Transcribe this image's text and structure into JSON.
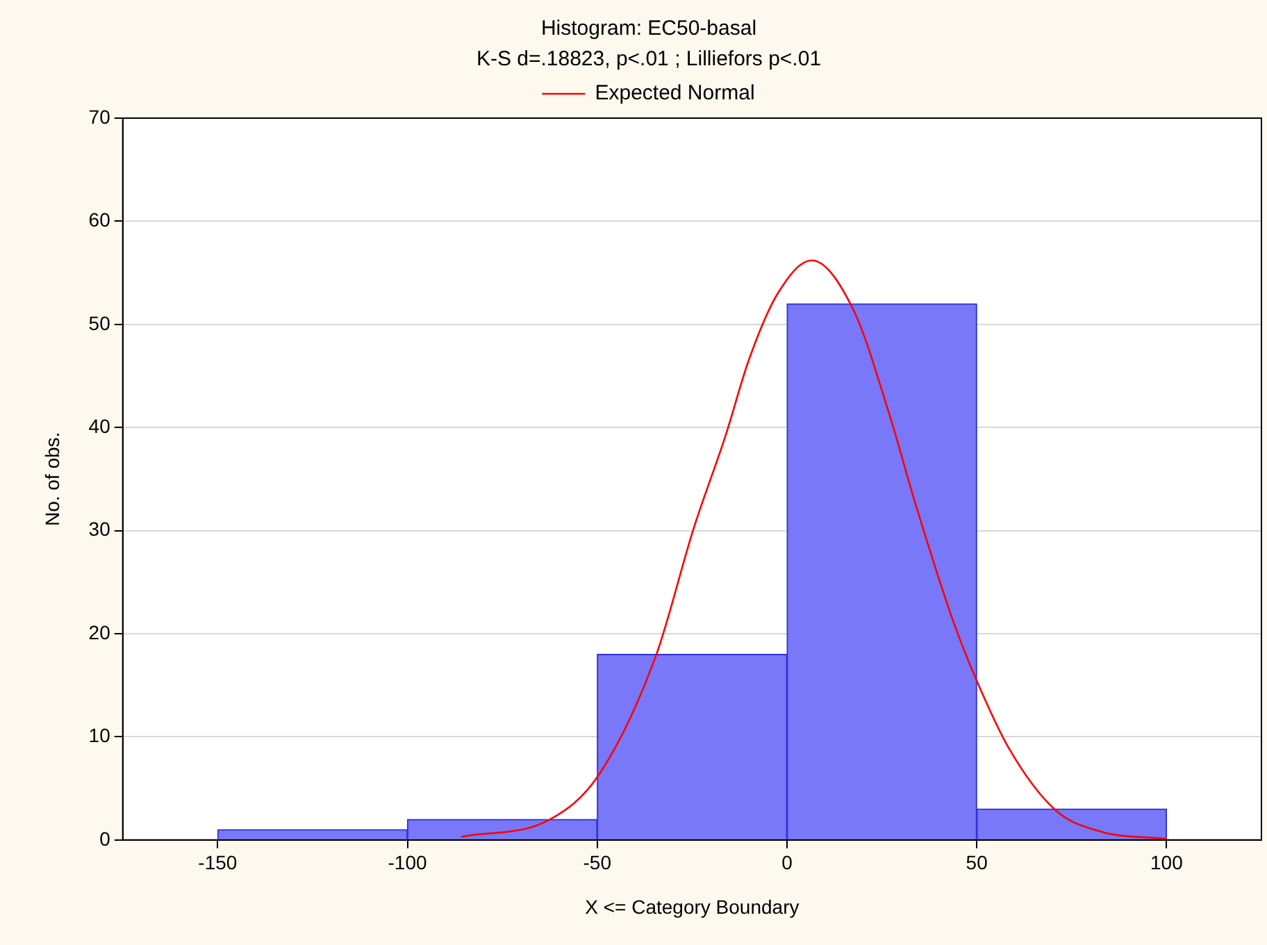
{
  "chart_data": {
    "type": "histogram",
    "title": "Histogram: EC50-basal",
    "subtitle": "K-S d=.18823, p<.01 ; Lilliefors p<.01",
    "xlabel": "X <= Category Boundary",
    "ylabel": "No. of obs.",
    "bins": [
      -150,
      -100,
      -50,
      0,
      50,
      100
    ],
    "values": [
      1,
      2,
      18,
      52,
      3
    ],
    "color": "#7878f8",
    "series": [
      {
        "type": "line",
        "name": "Expected Normal",
        "color": "#ff0000",
        "x": [
          -85.8,
          -62.4,
          -49.6,
          -34.5,
          -24.6,
          -16.2,
          -10,
          -2.6,
          6.5,
          17.5,
          26.7,
          34,
          43.9,
          49.8,
          58.6,
          70.7,
          82.8,
          100
        ],
        "values": [
          0.3,
          2,
          6.3,
          17.9,
          30.2,
          39.2,
          46.6,
          52.9,
          56.2,
          51.4,
          41.6,
          32.4,
          21.1,
          15.6,
          8.8,
          2.9,
          0.8,
          0.1
        ]
      }
    ],
    "xlim": [
      -175,
      125
    ],
    "xticks": [
      -150,
      -100,
      -50,
      0,
      50,
      100
    ],
    "ylim": [
      0,
      70
    ],
    "yticks": [
      0,
      10,
      20,
      30,
      40,
      50,
      60,
      70
    ],
    "grid": "y",
    "legend": "top",
    "marker": "none",
    "line_style": "solid"
  }
}
